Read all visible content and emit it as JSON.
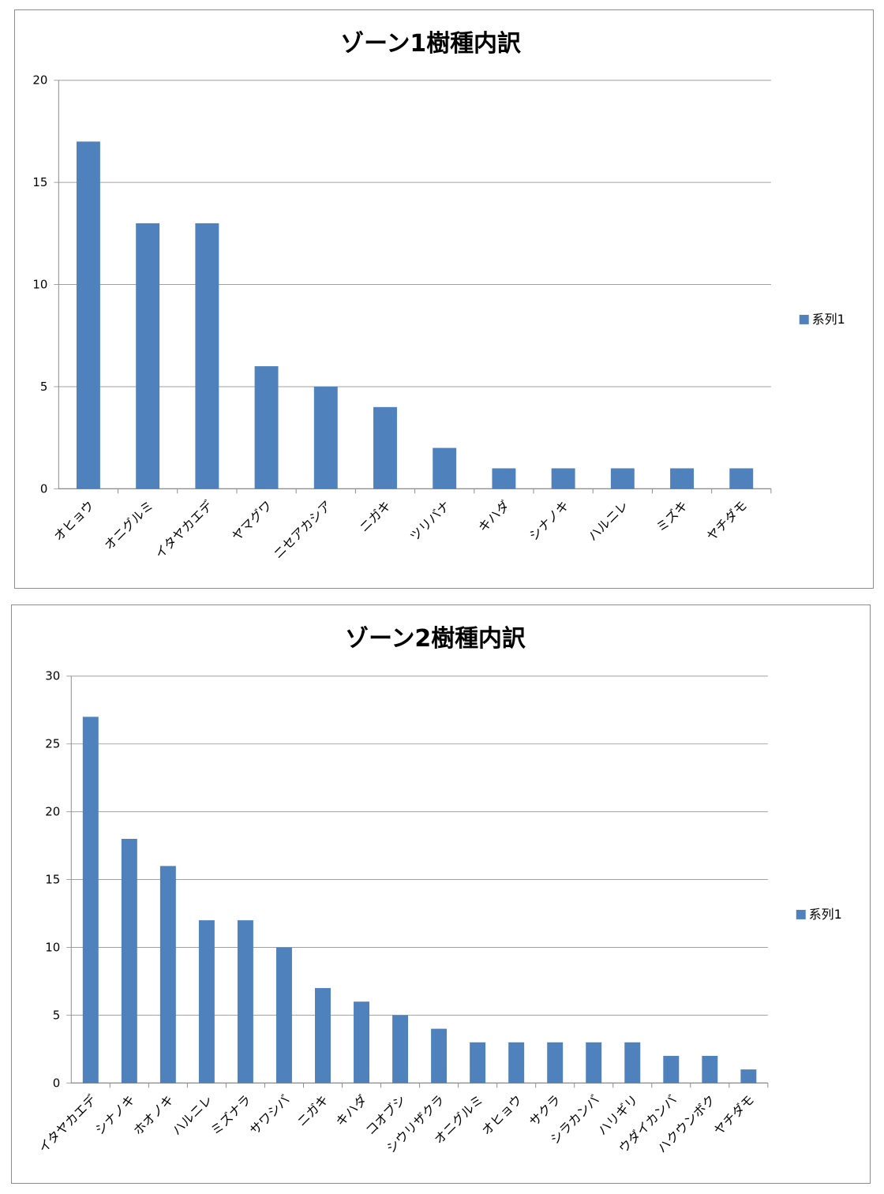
{
  "chart_data": [
    {
      "type": "bar",
      "title": "ゾーン1樹種内訳",
      "ylim": [
        0,
        20
      ],
      "yticks": [
        0,
        5,
        10,
        15,
        20
      ],
      "grid": true,
      "legend_position": "right",
      "categories": [
        "オヒョウ",
        "オニグルミ",
        "イタヤカエデ",
        "ヤマグワ",
        "ニセアカシア",
        "ニガキ",
        "ツリバナ",
        "キハダ",
        "シナノキ",
        "ハルニレ",
        "ミズキ",
        "ヤチダモ"
      ],
      "series": [
        {
          "name": "系列1",
          "color": "#4f81bd",
          "values": [
            17,
            13,
            13,
            6,
            5,
            4,
            2,
            1,
            1,
            1,
            1,
            1
          ]
        }
      ]
    },
    {
      "type": "bar",
      "title": "ゾーン2樹種内訳",
      "ylim": [
        0,
        30
      ],
      "yticks": [
        0,
        5,
        10,
        15,
        20,
        25,
        30
      ],
      "grid": true,
      "legend_position": "right",
      "categories": [
        "イタヤカエデ",
        "シナノキ",
        "ホオノキ",
        "ハルニレ",
        "ミズナラ",
        "サワシバ",
        "ニガキ",
        "キハダ",
        "コオブシ",
        "シウリザクラ",
        "オニグルミ",
        "オヒョウ",
        "サクラ",
        "シラカンバ",
        "ハリギリ",
        "ウダイカンバ",
        "ハクウンボク",
        "ヤチダモ"
      ],
      "series": [
        {
          "name": "系列1",
          "color": "#4f81bd",
          "values": [
            27,
            18,
            16,
            12,
            12,
            10,
            7,
            6,
            5,
            4,
            3,
            3,
            3,
            3,
            3,
            2,
            2,
            1
          ]
        }
      ]
    }
  ]
}
